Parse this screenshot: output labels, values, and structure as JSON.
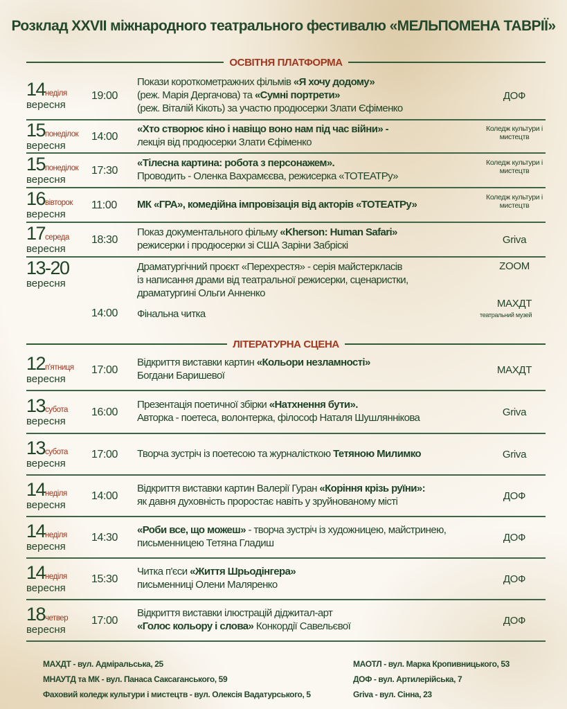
{
  "title": "Розклад XXVII міжнародного театрального фестивалю «МЕЛЬПОМЕНА ТАВРІЇ»",
  "colors": {
    "text": "#1f4428",
    "accent": "#a0381f",
    "divider": "#3f6446"
  },
  "sections": [
    {
      "label": "ОСВІТНЯ ПЛАТФОРМА",
      "events": [
        {
          "day": "14",
          "dow": "неділя",
          "month": "вересня",
          "time": "19:00",
          "lines": [
            [
              {
                "t": "Покази короткометражних фільмів ",
                "b": false
              },
              {
                "t": "«Я хочу додому»",
                "b": true
              }
            ],
            [
              {
                "t": "(реж. Марія Дергачова) та ",
                "b": false
              },
              {
                "t": "«Сумні портрети»",
                "b": true
              }
            ],
            [
              {
                "t": "(реж. Віталій Кікоть) за участю продюсерки Злати Єфіменко",
                "b": false
              }
            ]
          ],
          "venue": "ДОФ"
        },
        {
          "day": "15",
          "dow": "понеділок",
          "month": "вересня",
          "time": "14:00",
          "lines": [
            [
              {
                "t": "«Хто створює кіно і навіщо воно нам під час війни» -",
                "b": true
              }
            ],
            [
              {
                "t": "лекція від продюсерки Злати Єфіменко",
                "b": false
              }
            ]
          ],
          "venue": "Коледж культури і мистецтв",
          "venue_small": true
        },
        {
          "day": "15",
          "dow": "понеділок",
          "month": "вересня",
          "time": "17:30",
          "lines": [
            [
              {
                "t": "«Тілесна картина: робота з персонажем».",
                "b": true
              }
            ],
            [
              {
                "t": "Проводить - Оленка Вахрамєєва, режисерка «ТОТЕАТРу»",
                "b": false
              }
            ]
          ],
          "venue": "Коледж культури і мистецтв",
          "venue_small": true
        },
        {
          "day": "16",
          "dow": "вівторок",
          "month": "вересня",
          "time": "11:00",
          "lines": [
            [
              {
                "t": "МК «ГРА», комедійна імпровізація від акторів «ТОТЕАТРу»",
                "b": true
              }
            ]
          ],
          "venue": "Коледж культури і мистецтв",
          "venue_small": true
        },
        {
          "day": "17",
          "dow": "середа",
          "month": "вересня",
          "time": "18:30",
          "lines": [
            [
              {
                "t": "Показ документального фільму ",
                "b": false
              },
              {
                "t": "«Kherson: Human Safari»",
                "b": true
              }
            ],
            [
              {
                "t": "режисерки і продюсерки зі США Заріни Забріскі",
                "b": false
              }
            ]
          ],
          "venue": "Griva"
        },
        {
          "day": "13-20",
          "dow": "",
          "month": "вересня",
          "time": "",
          "lines": [
            [
              {
                "t": "Драматургічний проєкт «Перехрестя» - серія майстеркласів",
                "b": false
              }
            ],
            [
              {
                "t": "із написання драми від театральної режисерки, сценаристки,",
                "b": false
              }
            ],
            [
              {
                "t": "драматургині Ольги Анненко",
                "b": false
              }
            ]
          ],
          "venue": "ZOOM",
          "followup": {
            "time": "14:00",
            "text": "Фінальна читка",
            "venue": "МАХДТ",
            "venue_note": "театральний музей"
          }
        }
      ]
    },
    {
      "label": "ЛІТЕРАТУРНА СЦЕНА",
      "events": [
        {
          "day": "12",
          "dow": "п'ятниця",
          "month": "вересня",
          "time": "17:00",
          "lines": [
            [
              {
                "t": "Відкриття виставки картин ",
                "b": false
              },
              {
                "t": "«Кольори незламності»",
                "b": true
              }
            ],
            [
              {
                "t": "Богдани Баришевої",
                "b": false
              }
            ]
          ],
          "venue": "МАХДТ"
        },
        {
          "day": "13",
          "dow": "субота",
          "month": "вересня",
          "time": "16:00",
          "lines": [
            [
              {
                "t": "Презентація поетичної збірки ",
                "b": false
              },
              {
                "t": "«Натхнення бути».",
                "b": true
              }
            ],
            [
              {
                "t": "Авторка - поетеса, волонтерка, філософ Наталя Шушляннікова",
                "b": false
              }
            ]
          ],
          "venue": "Griva"
        },
        {
          "day": "13",
          "dow": "субота",
          "month": "вересня",
          "time": "17:00",
          "lines": [
            [
              {
                "t": "Творча зустріч із поетесою та журналісткою ",
                "b": false
              },
              {
                "t": "Тетяною Милимко",
                "b": true
              }
            ]
          ],
          "venue": "Griva"
        },
        {
          "day": "14",
          "dow": "неділя",
          "month": "вересня",
          "time": "14:00",
          "lines": [
            [
              {
                "t": "Відкриття виставки картин Валерії Гуран ",
                "b": false
              },
              {
                "t": "«Коріння крізь руїни»:",
                "b": true
              }
            ],
            [
              {
                "t": "як давня духовність проростає навіть у зруйнованому місті",
                "b": false
              }
            ]
          ],
          "venue": "ДОФ"
        },
        {
          "day": "14",
          "dow": "неділя",
          "month": "вересня",
          "time": "14:30",
          "lines": [
            [
              {
                "t": "«Роби все, що можеш»",
                "b": true
              },
              {
                "t": " - творча зустріч із художницею, майстринею,",
                "b": false
              }
            ],
            [
              {
                "t": "письменницею Тетяна Гладиш",
                "b": false
              }
            ]
          ],
          "venue": "ДОФ"
        },
        {
          "day": "14",
          "dow": "неділя",
          "month": "вересня",
          "time": "15:30",
          "lines": [
            [
              {
                "t": "Читка п'єси ",
                "b": false
              },
              {
                "t": "«Життя Шрьодінгера»",
                "b": true
              }
            ],
            [
              {
                "t": "письменниці Олени Маляренко",
                "b": false
              }
            ]
          ],
          "venue": "ДОФ"
        },
        {
          "day": "18",
          "dow": "четвер",
          "month": "вересня",
          "time": "17:00",
          "lines": [
            [
              {
                "t": "Відкриття виставки ілюстрацій діджитал-арт",
                "b": false
              }
            ],
            [
              {
                "t": "«Голос кольору і слова»",
                "b": true
              },
              {
                "t": " Конкордії Савельєвої",
                "b": false
              }
            ]
          ],
          "venue": "ДОФ"
        }
      ]
    }
  ],
  "footer": {
    "left": [
      "МАХДТ - вул. Адміральська, 25",
      "МНАУТД та МК - вул. Панаса Саксаганського, 59",
      "Фаховий коледж культури і мистецтв - вул. Олексія Вадатурського, 5"
    ],
    "right": [
      "МАОТЛ - вул. Марка Кропивницького, 53",
      "ДОФ - вул. Артилерійська, 7",
      "Griva - вул. Сінна, 23"
    ]
  }
}
